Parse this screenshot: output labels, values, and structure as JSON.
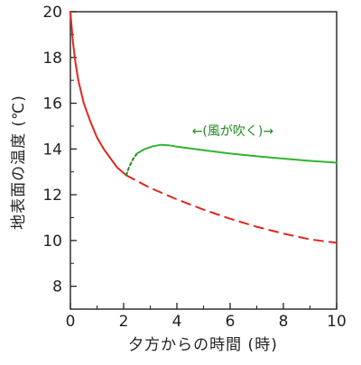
{
  "chart_data": {
    "type": "line",
    "title": "",
    "xlabel": "夕方からの時間 (時)",
    "ylabel": "地表面の温度 (℃)",
    "xlim": [
      0,
      10
    ],
    "ylim": [
      7,
      20
    ],
    "xticks": [
      "0",
      "2",
      "4",
      "6",
      "8",
      "10"
    ],
    "yticks": [
      "8",
      "10",
      "12",
      "14",
      "16",
      "18",
      "20"
    ],
    "grid": false,
    "legend": "none",
    "annotation": {
      "text": "←(風が吹く)→",
      "x_start": 2.2,
      "x_end": 10.0,
      "y": 14.8
    },
    "series": [
      {
        "color": "#e0281e",
        "style": "solid",
        "x": [
          0.0,
          0.05,
          0.1,
          0.2,
          0.3,
          0.5,
          0.75,
          1.0,
          1.25,
          1.5,
          1.75,
          2.0,
          2.1
        ],
        "y": [
          20.0,
          19.3,
          18.6,
          17.7,
          17.0,
          16.0,
          15.2,
          14.5,
          14.0,
          13.6,
          13.2,
          12.95,
          12.85
        ]
      },
      {
        "color": "#e0281e",
        "style": "dashed",
        "x": [
          2.1,
          2.5,
          3.0,
          4.0,
          5.0,
          6.0,
          7.0,
          8.0,
          9.0,
          10.0
        ],
        "y": [
          12.85,
          12.6,
          12.3,
          11.8,
          11.35,
          10.95,
          10.6,
          10.3,
          10.05,
          9.9
        ]
      },
      {
        "color": "#1f8a1f",
        "style": "dashed",
        "x": [
          2.1,
          2.2,
          2.35,
          2.5
        ],
        "y": [
          12.85,
          13.2,
          13.55,
          13.8
        ]
      },
      {
        "color": "#2fb52f",
        "style": "solid",
        "x": [
          2.5,
          2.8,
          3.1,
          3.4,
          3.7,
          4.0,
          5.0,
          6.0,
          7.0,
          8.0,
          9.0,
          10.0
        ],
        "y": [
          13.8,
          14.0,
          14.12,
          14.18,
          14.16,
          14.1,
          13.95,
          13.8,
          13.68,
          13.58,
          13.48,
          13.4
        ]
      }
    ]
  }
}
